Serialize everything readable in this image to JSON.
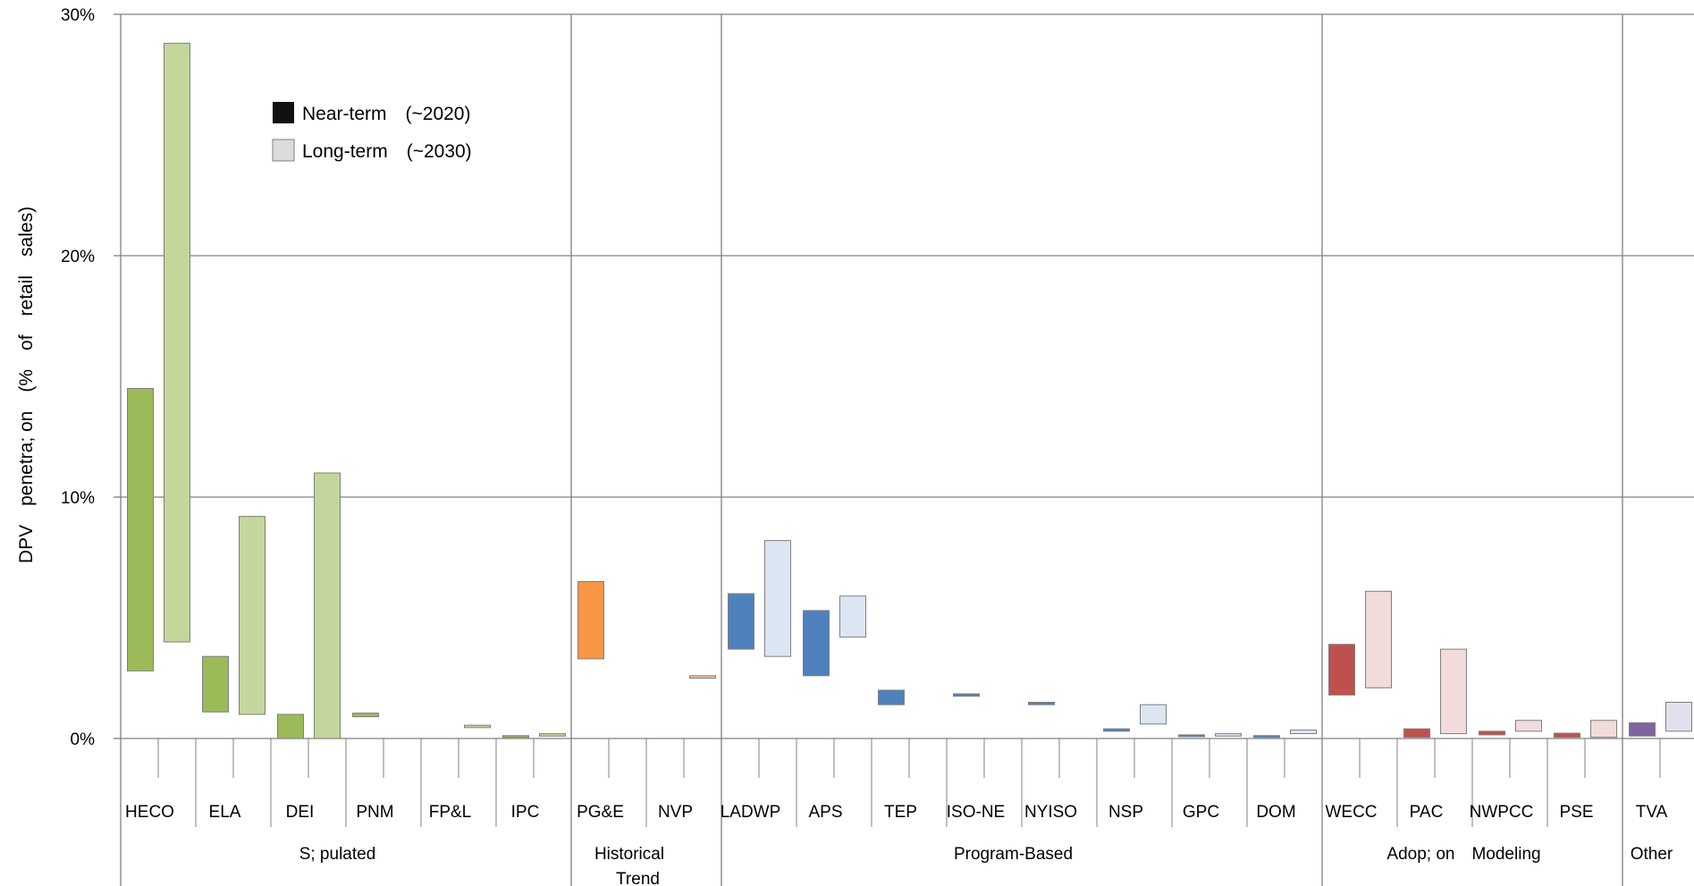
{
  "chart_data": {
    "type": "bar",
    "subtype": "floating-range",
    "ylabel": "DPV penetra; on (% of retail sales) ",
    "y_ticks": [
      "0% ",
      "10% ",
      "20% ",
      "30% "
    ],
    "ylim": [
      0,
      30
    ],
    "grid": true,
    "legend_position": "top-left",
    "legend": [
      {
        "label": "Near-term (~2020) ",
        "swatch": "#111111"
      },
      {
        "label": "Long-term (~2030)  ",
        "swatch": "#dcdcdc"
      }
    ],
    "groups": [
      {
        "label": "S; pulated ",
        "label2": "",
        "color_near": "#9bbb59",
        "color_long": "#c3d69b",
        "categories": [
          {
            "label": "HECO ",
            "near": [
              2.8,
              14.5
            ],
            "long": [
              4.0,
              28.8
            ]
          },
          {
            "label": "ELA ",
            "near": [
              1.1,
              3.4
            ],
            "long": [
              1.0,
              9.2
            ]
          },
          {
            "label": "DEI ",
            "near": [
              0.0,
              1.0
            ],
            "long": [
              0.0,
              11.0
            ]
          },
          {
            "label": "PNM ",
            "near": [
              0.9,
              1.05
            ],
            "long": null
          },
          {
            "label": "FP&L ",
            "near": null,
            "long": [
              0.45,
              0.55
            ]
          },
          {
            "label": "IPC ",
            "near": [
              0.05,
              0.12
            ],
            "long": [
              0.1,
              0.2
            ]
          }
        ]
      },
      {
        "label": "Historical  ",
        "label2": "Trend ",
        "color_near": "#f79646",
        "color_long": "#fac090",
        "categories": [
          {
            "label": "PG&E ",
            "near": [
              3.3,
              6.5
            ],
            "long": null
          },
          {
            "label": "NVP ",
            "near": null,
            "long": [
              2.5,
              2.6
            ]
          }
        ]
      },
      {
        "label": "Program-Based ",
        "label2": "",
        "color_near": "#4f81bd",
        "color_long": "#dce6f2",
        "categories": [
          {
            "label": "LADWP ",
            "near": [
              3.7,
              6.0
            ],
            "long": [
              3.4,
              8.2
            ]
          },
          {
            "label": "APS ",
            "near": [
              2.6,
              5.3
            ],
            "long": [
              4.2,
              5.9
            ]
          },
          {
            "label": "TEP ",
            "near": [
              1.4,
              2.0
            ],
            "long": null
          },
          {
            "label": "ISO-NE ",
            "near": [
              1.75,
              1.85
            ],
            "long": null
          },
          {
            "label": "NYISO ",
            "near": [
              1.4,
              1.5
            ],
            "long": null
          },
          {
            "label": "NSP ",
            "near": [
              0.3,
              0.4
            ],
            "long": [
              0.6,
              1.4
            ]
          },
          {
            "label": "GPC ",
            "near": [
              0.1,
              0.15
            ],
            "long": [
              0.1,
              0.2
            ]
          },
          {
            "label": "DOM ",
            "near": [
              0.05,
              0.12
            ],
            "long": [
              0.2,
              0.35
            ]
          }
        ]
      },
      {
        "label": "Adop; on Modeling ",
        "label2": "",
        "color_near": "#c0504d",
        "color_long": "#f2dcdb",
        "categories": [
          {
            "label": "WECC ",
            "near": [
              1.8,
              3.9
            ],
            "long": [
              2.1,
              6.1
            ]
          },
          {
            "label": "PAC ",
            "near": [
              0.05,
              0.4
            ],
            "long": [
              0.2,
              3.7
            ]
          },
          {
            "label": "NWPCC ",
            "near": [
              0.15,
              0.3
            ],
            "long": [
              0.3,
              0.75
            ]
          },
          {
            "label": "PSE ",
            "near": [
              0.05,
              0.22
            ],
            "long": [
              0.05,
              0.75
            ]
          }
        ]
      },
      {
        "label": "Other ",
        "label2": "",
        "color_near": "#8064a2",
        "color_long": "#e4dfec",
        "categories": [
          {
            "label": "TVA ",
            "near": [
              0.1,
              0.65
            ],
            "long": [
              0.3,
              1.5
            ]
          }
        ]
      }
    ]
  }
}
